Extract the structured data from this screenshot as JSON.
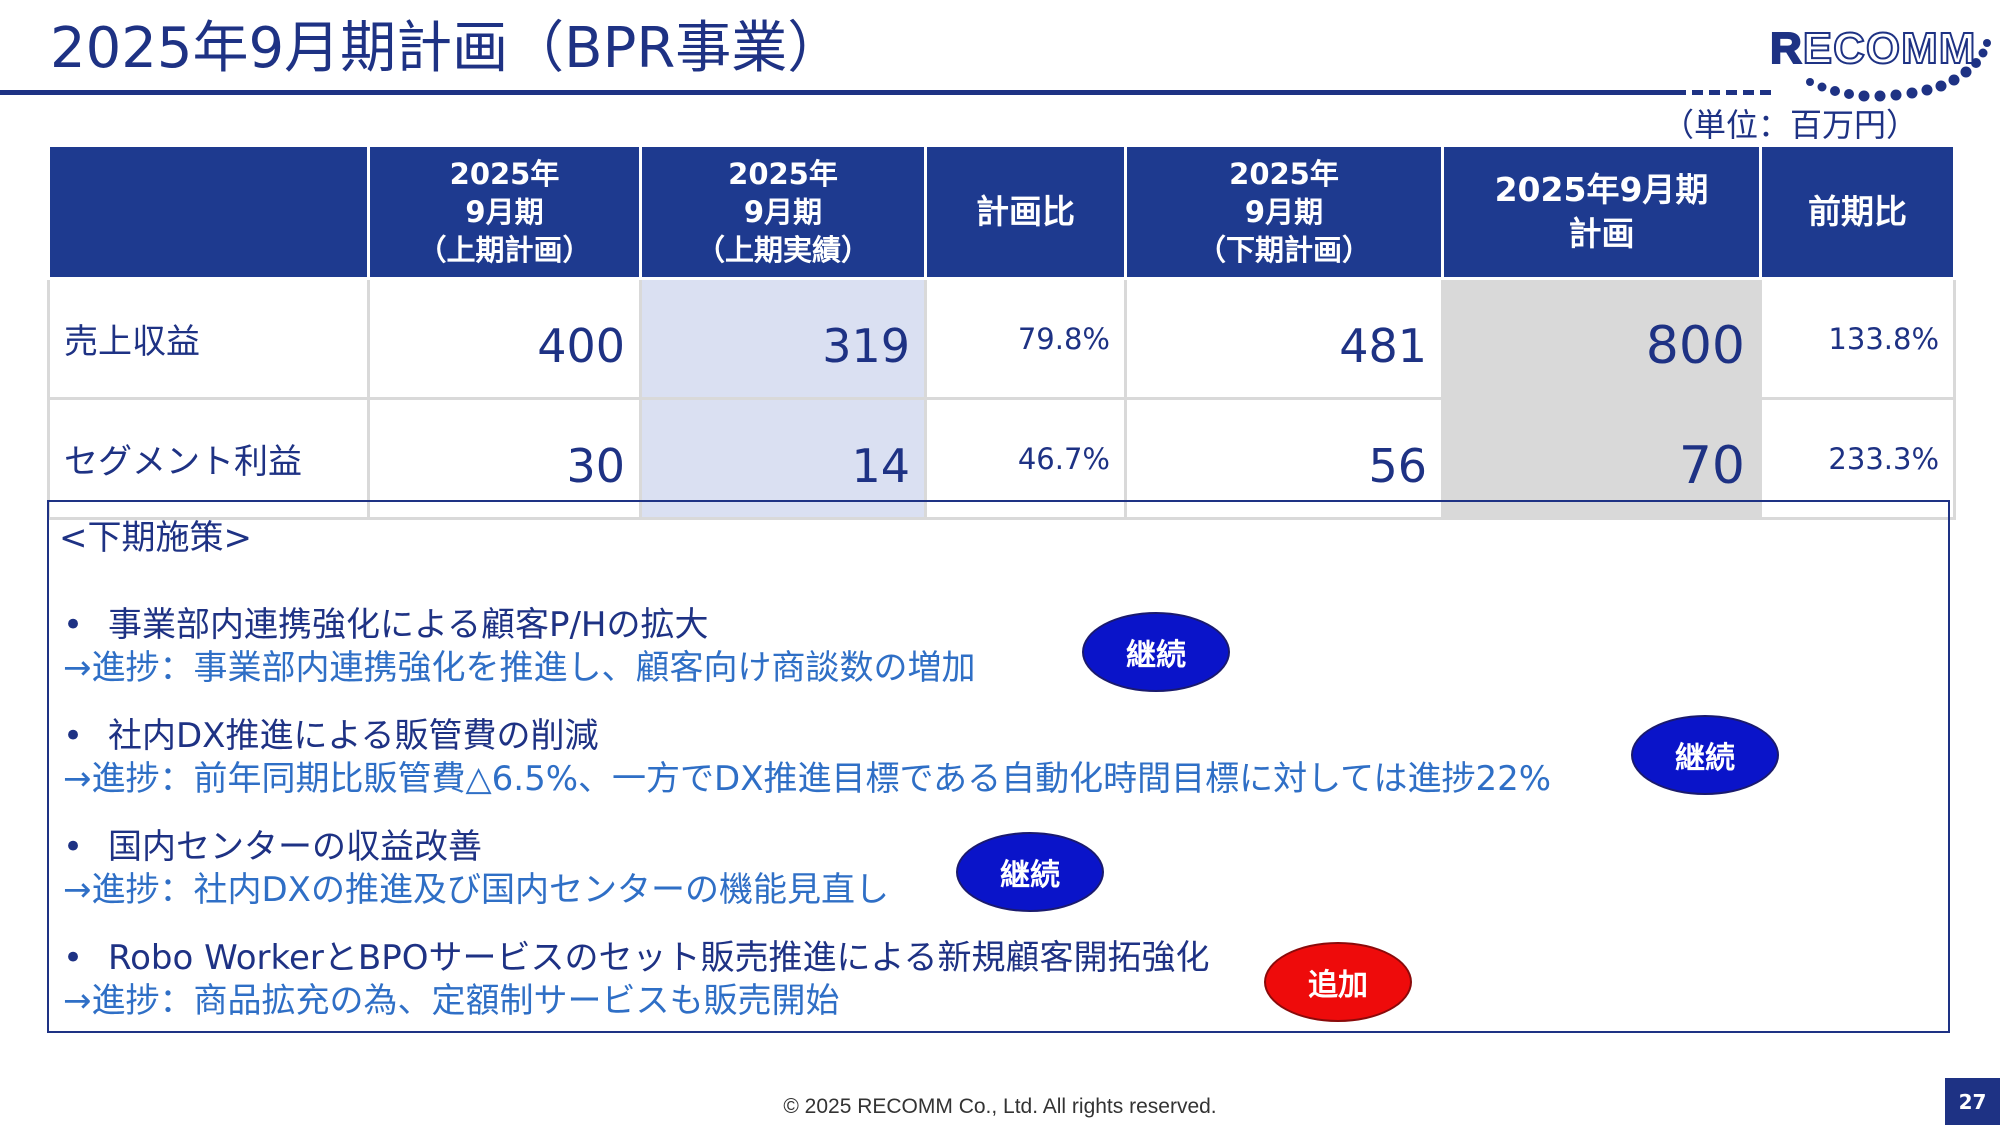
{
  "title": "2025年9月期計画（BPR事業）",
  "logo": {
    "first": "R",
    "rest": "ECOMM"
  },
  "unit": "（単位：百万円）",
  "table": {
    "headers": [
      "",
      "2025年\n9月期\n（上期計画）",
      "2025年\n9月期\n（上期実績）",
      "計画比",
      "2025年\n9月期\n（下期計画）",
      "2025年9月期\n計画",
      "前期比"
    ],
    "rows": [
      {
        "label": "売上収益",
        "h1_plan": "400",
        "h1_actual": "319",
        "plan_ratio": "79.8%",
        "h2_plan": "481",
        "fy_plan": "800",
        "yoy": "133.8%"
      },
      {
        "label": "セグメント利益",
        "h1_plan": "30",
        "h1_actual": "14",
        "plan_ratio": "46.7%",
        "h2_plan": "56",
        "fy_plan": "70",
        "yoy": "233.3%"
      }
    ]
  },
  "measures": {
    "heading": "<下期施策>",
    "bullet": "•",
    "items": [
      {
        "main": "事業部内連携強化による顧客P/Hの拡大",
        "progress": "→進捗：事業部内連携強化を推進し、顧客向け商談数の増加",
        "badge": "継続",
        "badge_color": "#0a14c9"
      },
      {
        "main": "社内DX推進による販管費の削減",
        "progress": "→進捗：前年同期比販管費△6.5%、一方でDX推進目標である自動化時間目標に対しては進捗22%",
        "badge": "継続",
        "badge_color": "#0a14c9"
      },
      {
        "main": "国内センターの収益改善",
        "progress": "→進捗：社内DXの推進及び国内センターの機能見直し",
        "badge": "継続",
        "badge_color": "#0a14c9"
      },
      {
        "main": "Robo WorkerとBPOサービスのセット販売推進による新規顧客開拓強化",
        "progress": "→進捗：商品拡充の為、定額制サービスも販売開始",
        "badge": "追加",
        "badge_color": "#ee0b0b"
      }
    ]
  },
  "footer": "© 2025 RECOMM Co., Ltd. All rights reserved.",
  "page_number": "27"
}
